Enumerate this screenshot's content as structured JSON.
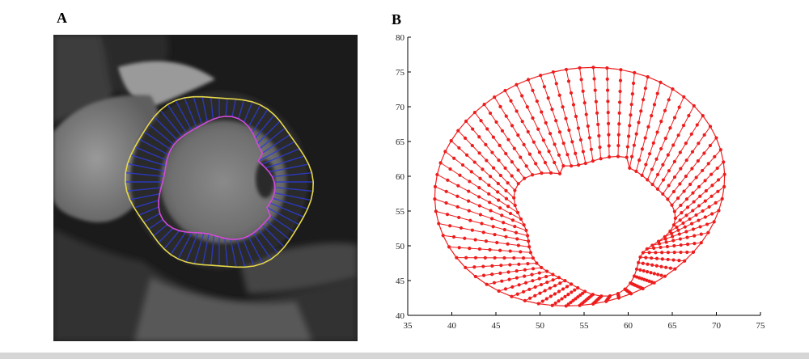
{
  "figure": {
    "panel_a_label": "A",
    "panel_b_label": "B"
  },
  "colors": {
    "contour_outer": "#e6d84a",
    "contour_inner": "#d24bd8",
    "spokes": "#2b3bd6",
    "plot_points": "#ee1c1c"
  },
  "chart_data": {
    "type": "scatter",
    "title": "",
    "xlabel": "",
    "ylabel": "",
    "xlim": [
      35,
      75
    ],
    "ylim": [
      40,
      80
    ],
    "xticks": [
      35,
      40,
      45,
      50,
      55,
      60,
      65,
      70,
      75
    ],
    "yticks": [
      40,
      45,
      50,
      55,
      60,
      65,
      70,
      75,
      80
    ],
    "grid": false,
    "ring": {
      "spokes": 64,
      "layers": 9,
      "inner_center": [
        56,
        53
      ],
      "inner_radius_x": 8.5,
      "inner_radius_y": 8.5,
      "outer_center": [
        54.5,
        58.5
      ],
      "outer_radius_x": 16,
      "outer_radius_y": 17.5
    }
  }
}
